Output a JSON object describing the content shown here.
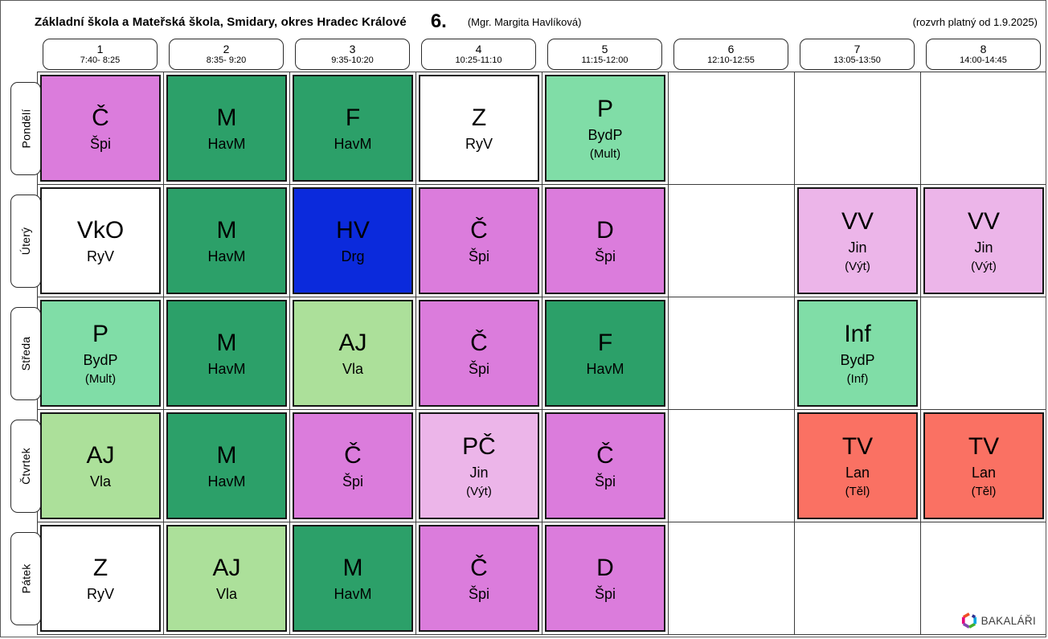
{
  "header": {
    "school": "Základní škola a Mateřská škola, Smidary, okres Hradec Králové",
    "class_label": "6.",
    "teacher": "(Mgr. Margita Havlíková)",
    "validity": "(rozvrh platný od 1.9.2025)"
  },
  "periods": [
    {
      "num": "1",
      "time": "7:40- 8:25"
    },
    {
      "num": "2",
      "time": "8:35- 9:20"
    },
    {
      "num": "3",
      "time": "9:35-10:20"
    },
    {
      "num": "4",
      "time": "10:25-11:10"
    },
    {
      "num": "5",
      "time": "11:15-12:00"
    },
    {
      "num": "6",
      "time": "12:10-12:55"
    },
    {
      "num": "7",
      "time": "13:05-13:50"
    },
    {
      "num": "8",
      "time": "14:00-14:45"
    }
  ],
  "colors": {
    "violet": "#DB7CDC",
    "green": "#2CA069",
    "blue": "#0B2ADC",
    "mint": "#80DDA7",
    "lightgreen": "#ACE09A",
    "lightpink": "#ECB5E9",
    "salmon": "#FA7163",
    "white": "#FFFFFF"
  },
  "days": [
    {
      "name": "Pondělí",
      "lessons": [
        {
          "subject": "Č",
          "teacher": "Špi",
          "room": "",
          "color": "violet"
        },
        {
          "subject": "M",
          "teacher": "HavM",
          "room": "",
          "color": "green"
        },
        {
          "subject": "F",
          "teacher": "HavM",
          "room": "",
          "color": "green"
        },
        {
          "subject": "Z",
          "teacher": "RyV",
          "room": "",
          "color": "white"
        },
        {
          "subject": "P",
          "teacher": "BydP",
          "room": "(Mult)",
          "color": "mint"
        },
        null,
        null,
        null
      ]
    },
    {
      "name": "Úterý",
      "lessons": [
        {
          "subject": "VkO",
          "teacher": "RyV",
          "room": "",
          "color": "white"
        },
        {
          "subject": "M",
          "teacher": "HavM",
          "room": "",
          "color": "green"
        },
        {
          "subject": "HV",
          "teacher": "Drg",
          "room": "",
          "color": "blue"
        },
        {
          "subject": "Č",
          "teacher": "Špi",
          "room": "",
          "color": "violet"
        },
        {
          "subject": "D",
          "teacher": "Špi",
          "room": "",
          "color": "violet"
        },
        null,
        {
          "subject": "VV",
          "teacher": "Jin",
          "room": "(Výt)",
          "color": "lightpink"
        },
        {
          "subject": "VV",
          "teacher": "Jin",
          "room": "(Výt)",
          "color": "lightpink"
        }
      ]
    },
    {
      "name": "Středa",
      "lessons": [
        {
          "subject": "P",
          "teacher": "BydP",
          "room": "(Mult)",
          "color": "mint"
        },
        {
          "subject": "M",
          "teacher": "HavM",
          "room": "",
          "color": "green"
        },
        {
          "subject": "AJ",
          "teacher": "Vla",
          "room": "",
          "color": "lightgreen"
        },
        {
          "subject": "Č",
          "teacher": "Špi",
          "room": "",
          "color": "violet"
        },
        {
          "subject": "F",
          "teacher": "HavM",
          "room": "",
          "color": "green"
        },
        null,
        {
          "subject": "Inf",
          "teacher": "BydP",
          "room": "(Inf)",
          "color": "mint"
        },
        null
      ]
    },
    {
      "name": "Čtvrtek",
      "lessons": [
        {
          "subject": "AJ",
          "teacher": "Vla",
          "room": "",
          "color": "lightgreen"
        },
        {
          "subject": "M",
          "teacher": "HavM",
          "room": "",
          "color": "green"
        },
        {
          "subject": "Č",
          "teacher": "Špi",
          "room": "",
          "color": "violet"
        },
        {
          "subject": "PČ",
          "teacher": "Jin",
          "room": "(Výt)",
          "color": "lightpink"
        },
        {
          "subject": "Č",
          "teacher": "Špi",
          "room": "",
          "color": "violet"
        },
        null,
        {
          "subject": "TV",
          "teacher": "Lan",
          "room": "(Těl)",
          "color": "salmon"
        },
        {
          "subject": "TV",
          "teacher": "Lan",
          "room": "(Těl)",
          "color": "salmon"
        }
      ]
    },
    {
      "name": "Pátek",
      "lessons": [
        {
          "subject": "Z",
          "teacher": "RyV",
          "room": "",
          "color": "white"
        },
        {
          "subject": "AJ",
          "teacher": "Vla",
          "room": "",
          "color": "lightgreen"
        },
        {
          "subject": "M",
          "teacher": "HavM",
          "room": "",
          "color": "green"
        },
        {
          "subject": "Č",
          "teacher": "Špi",
          "room": "",
          "color": "violet"
        },
        {
          "subject": "D",
          "teacher": "Špi",
          "room": "",
          "color": "violet"
        },
        null,
        null,
        null
      ]
    }
  ],
  "logo": {
    "text": "BAKALÁŘI"
  }
}
